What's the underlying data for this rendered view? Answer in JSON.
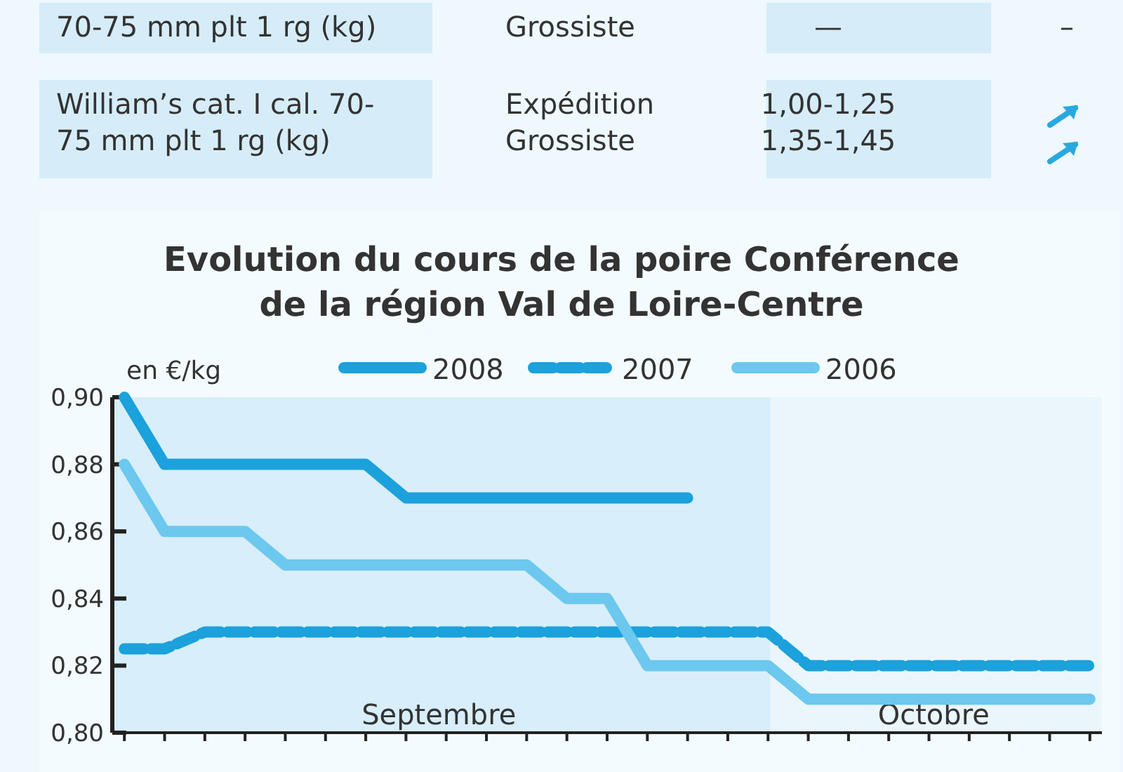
{
  "chart_data": [
    {
      "type": "other",
      "annotations": [
        "70-75 mm plt 1 rg (kg)",
        "Grossiste",
        "—",
        "–",
        "William’s cat. I cal. 70-\n75 mm plt 1 rg (kg)",
        "Expédition\nGrossiste",
        "1,00-1,25\n1,35-1,45"
      ]
    },
    {
      "type": "line",
      "title": "Evolution du cours de la poire Conférence\nde la région Val de Loire-Centre",
      "ylabel": "en €/kg",
      "legend": "top",
      "line_style": "solid",
      "annotations": [
        "Septembre",
        "Octobre"
      ],
      "categories": [
        null,
        null,
        null,
        null,
        null,
        null,
        null,
        null,
        null,
        null,
        null,
        null,
        null,
        null,
        null,
        null,
        null,
        null,
        null,
        null,
        null,
        null,
        null,
        null,
        null
      ],
      "ylim": [
        0.8,
        0.9
      ],
      "yticks": [
        {
          "value": 0.8,
          "label": "0,80"
        },
        {
          "value": 0.82,
          "label": "0,82"
        },
        {
          "value": 0.84,
          "label": "0,84"
        },
        {
          "value": 0.86,
          "label": "0,86"
        },
        {
          "value": 0.88,
          "label": "0,88"
        },
        {
          "value": 0.9,
          "label": "0,90"
        }
      ],
      "series": [
        {
          "name": "2008",
          "color": "#1ba1dc",
          "values": [
            0.9,
            0.88,
            0.88,
            0.88,
            0.88,
            0.88,
            0.88,
            0.87,
            0.87,
            0.87,
            0.87,
            0.87,
            0.87,
            0.87,
            0.87,
            null,
            null,
            null,
            null,
            null,
            null,
            null,
            null,
            null,
            null
          ]
        },
        {
          "name": "2007",
          "color": "#1ba1dc",
          "line_style": "dashed",
          "values": [
            0.825,
            0.825,
            0.83,
            0.83,
            0.83,
            0.83,
            0.83,
            0.83,
            0.83,
            0.83,
            0.83,
            0.83,
            0.83,
            0.83,
            0.83,
            0.83,
            0.83,
            0.82,
            0.82,
            0.82,
            0.82,
            0.82,
            0.82,
            0.82,
            0.82
          ]
        },
        {
          "name": "2006",
          "color": "#6cc8ee",
          "values": [
            0.88,
            0.86,
            0.86,
            0.86,
            0.85,
            0.85,
            0.85,
            0.85,
            0.85,
            0.85,
            0.85,
            0.84,
            0.84,
            0.82,
            0.82,
            0.82,
            0.82,
            0.81,
            0.81,
            0.81,
            0.81,
            0.81,
            0.81,
            0.81,
            0.81
          ]
        }
      ]
    }
  ]
}
